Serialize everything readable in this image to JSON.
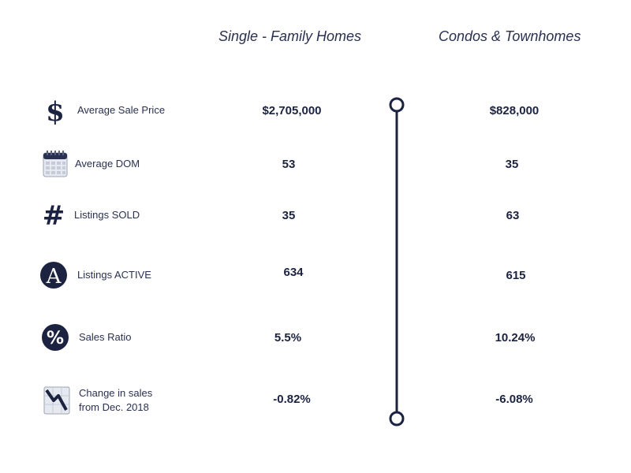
{
  "headers": {
    "single_family": "Single - Family Homes",
    "condos": "Condos & Townhomes"
  },
  "rows": [
    {
      "label": "Average Sale Price",
      "icon": "dollar-icon",
      "sfh": "$2,705,000",
      "condo": "$828,000"
    },
    {
      "label": "Average DOM",
      "icon": "calendar-icon",
      "sfh": "53",
      "condo": "35"
    },
    {
      "label": "Listings SOLD",
      "icon": "hash-icon",
      "sfh": "35",
      "condo": "63"
    },
    {
      "label": "Listings ACTIVE",
      "icon": "letter-a-circle-icon",
      "sfh": "634",
      "condo": "615"
    },
    {
      "label": "Sales Ratio",
      "icon": "percent-circle-icon",
      "sfh": "5.5%",
      "condo": "10.24%"
    },
    {
      "label_line1": "Change in sales",
      "label_line2": "from Dec. 2018",
      "icon": "trend-down-icon",
      "sfh": "-0.82%",
      "condo": "-6.08%"
    }
  ],
  "colors": {
    "navy": "#1c2341",
    "text": "#2a3150"
  }
}
